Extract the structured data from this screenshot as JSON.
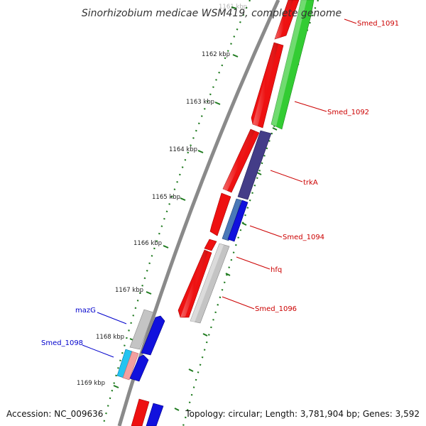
{
  "title": "Sinorhizobium medicae WSM419, complete genome",
  "footer": {
    "accession": "Accession: NC_009636",
    "topology": "Topology: circular; Length: 3,781,904 bp; Genes: 3,592"
  },
  "ticks": [
    "1161 kbp",
    "1162 kbp",
    "1163 kbp",
    "1164 kbp",
    "1165 kbp",
    "1166 kbp",
    "1167 kbp",
    "1168 kbp",
    "1169 kbp"
  ],
  "genes": {
    "smed_1091": "Smed_1091",
    "smed_1092": "Smed_1092",
    "trka": "trkA",
    "smed_1094": "Smed_1094",
    "hfq": "hfq",
    "smed_1096": "Smed_1096",
    "mazg": "mazG",
    "smed_1098": "Smed_1098"
  },
  "colors": {
    "backbone": "#8a8a8a",
    "tick": "#1e7a1e",
    "red": "#ee1111",
    "green": "#33cc33",
    "navy": "#443d88",
    "blue": "#1111dd",
    "steel": "#4a78b8",
    "gray": "#c4c4c4",
    "cyan": "#22c4f0",
    "pink": "#f2a0a0",
    "label_red": "#cc0000",
    "label_blue": "#0000cc"
  }
}
